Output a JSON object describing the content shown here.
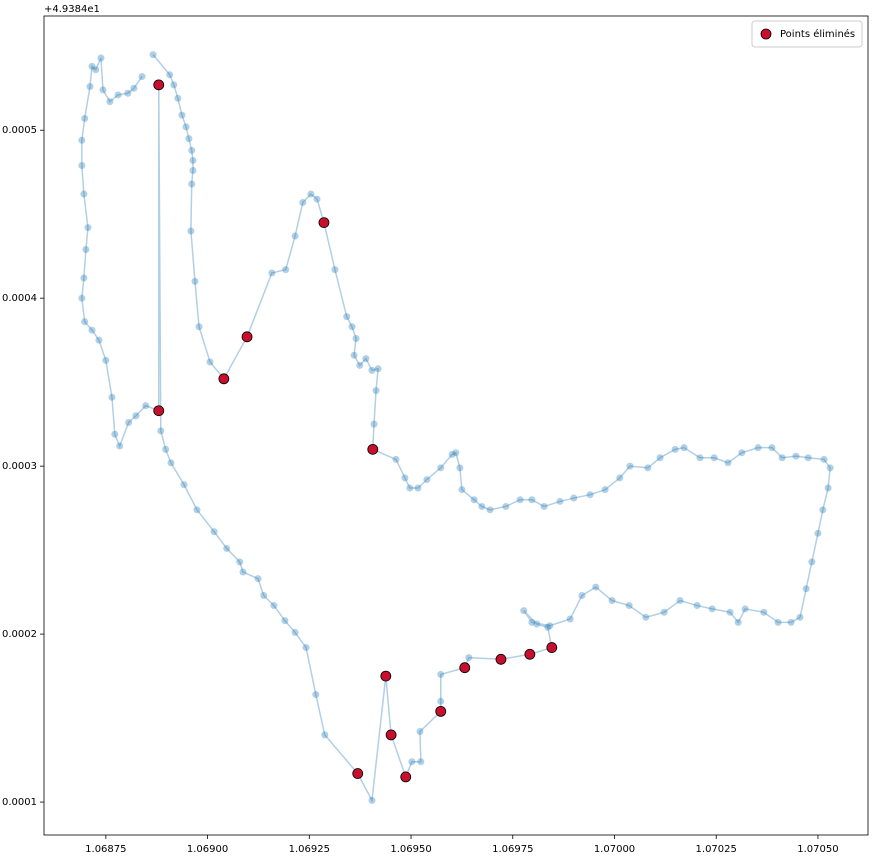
{
  "chart_data": {
    "type": "scatter",
    "y_offset_label": "+4.9384e1",
    "xlim": [
      1.068598,
      1.070623
    ],
    "ylim": [
      8.04e-05,
      0.000568
    ],
    "xticks": [
      1.06875,
      {
        "value": 1.069,
        "label": "1.06900"
      },
      1.06925,
      {
        "value": 1.0695,
        "label": "1.06950"
      },
      1.06975,
      {
        "value": 1.07,
        "label": "1.07000"
      },
      1.07025,
      {
        "value": 1.0705,
        "label": "1.07050"
      }
    ],
    "yticks": [
      0.0001,
      0.0002,
      0.0003,
      0.0004,
      0.0005
    ],
    "legend": "upper right",
    "series": [
      {
        "color": "#1f77b4",
        "line": true,
        "alpha": 0.35,
        "x": [
          1.068866,
          1.068907,
          1.068917,
          1.068927,
          1.068937,
          1.068947,
          1.068954,
          1.068961,
          1.068964,
          1.068964,
          1.068961,
          1.068959,
          1.068969,
          1.068979,
          1.069006,
          1.06904,
          1.069097,
          1.069158,
          1.069192,
          1.069215,
          1.069234,
          1.069254,
          1.069269,
          1.069286,
          1.069313,
          1.069342,
          1.069355,
          1.069365,
          1.06936,
          1.069374,
          1.069389,
          1.069404,
          1.069419,
          1.069414,
          1.069409,
          1.069406,
          1.069463,
          1.069485,
          1.069497,
          1.069517,
          1.069539,
          1.069573,
          1.069601,
          1.06961,
          1.06962,
          1.069625,
          1.069655,
          1.069674,
          1.069694,
          1.069733,
          1.069768,
          1.069797,
          1.069827,
          1.069866,
          1.0699,
          1.06994,
          1.069977,
          1.070013,
          1.070038,
          1.070082,
          1.070112,
          1.070149,
          1.070171,
          1.07021,
          1.070245,
          1.070279,
          1.070313,
          1.070353,
          1.070387,
          1.070412,
          1.070446,
          1.070476,
          1.070515,
          1.07053,
          1.070525,
          1.070512,
          1.0705,
          1.070485,
          1.070471,
          1.070456,
          1.070434,
          1.070402,
          1.070367,
          1.070321,
          1.070304,
          1.070284,
          1.07024,
          1.070203,
          1.070161,
          1.070122,
          1.070077,
          1.070036,
          1.069994,
          1.069954,
          1.06992,
          1.069891,
          1.069841,
          1.069797,
          1.069777,
          1.069809,
          1.069836,
          1.069846,
          1.069792,
          1.069721,
          1.069642,
          1.069632,
          1.069573,
          1.069573,
          1.069573,
          1.069522,
          1.069524,
          1.069502,
          1.069487,
          1.069451,
          1.069438,
          1.069404,
          1.069369,
          1.069288,
          1.069266,
          1.069242,
          1.069215,
          1.06919,
          1.069163,
          1.069138,
          1.069124,
          1.069087,
          1.069079,
          1.069047,
          1.069016,
          1.068974,
          1.068942,
          1.06891,
          1.068897,
          1.068885,
          1.06888,
          1.06888,
          1.068848,
          1.068824,
          1.068806,
          1.068784,
          1.068772,
          1.068765,
          1.06875,
          1.068733,
          1.068716,
          1.068698,
          1.068691,
          1.068696,
          1.068701,
          1.068706,
          1.068696,
          1.068691,
          1.068691,
          1.068698,
          1.068711,
          1.068716,
          1.068725,
          1.068738,
          1.068743,
          1.06876,
          1.06878,
          1.068804,
          1.068819,
          1.068839
        ],
        "y": [
          0.000545,
          0.000533,
          0.000527,
          0.000519,
          0.000509,
          0.000502,
          0.000495,
          0.000488,
          0.000482,
          0.000476,
          0.000468,
          0.00044,
          0.00041,
          0.000383,
          0.000362,
          0.000352,
          0.000377,
          0.000415,
          0.000417,
          0.000437,
          0.000457,
          0.000462,
          0.000459,
          0.000445,
          0.000417,
          0.000389,
          0.000383,
          0.000376,
          0.000366,
          0.00036,
          0.000364,
          0.000357,
          0.000358,
          0.000345,
          0.000325,
          0.00031,
          0.000304,
          0.000293,
          0.000287,
          0.000287,
          0.000292,
          0.000299,
          0.000307,
          0.000308,
          0.000299,
          0.000286,
          0.00028,
          0.000276,
          0.000274,
          0.000276,
          0.00028,
          0.00028,
          0.000276,
          0.000279,
          0.000281,
          0.000283,
          0.000286,
          0.000293,
          0.0003,
          0.000299,
          0.000305,
          0.00031,
          0.000311,
          0.000305,
          0.000305,
          0.000302,
          0.000308,
          0.000311,
          0.000311,
          0.000305,
          0.000306,
          0.000305,
          0.000304,
          0.000299,
          0.000287,
          0.000274,
          0.00026,
          0.000243,
          0.000227,
          0.00021,
          0.000207,
          0.000207,
          0.000213,
          0.000215,
          0.000207,
          0.000213,
          0.000215,
          0.000217,
          0.00022,
          0.000213,
          0.00021,
          0.000217,
          0.00022,
          0.000228,
          0.000223,
          0.000209,
          0.000205,
          0.000207,
          0.000214,
          0.000206,
          0.000204,
          0.000192,
          0.000188,
          0.000185,
          0.000186,
          0.00018,
          0.000176,
          0.00016,
          0.000154,
          0.000142,
          0.000124,
          0.000124,
          0.000115,
          0.00014,
          0.000175,
          0.000101,
          0.000117,
          0.00014,
          0.000164,
          0.000192,
          0.000201,
          0.000208,
          0.000217,
          0.000223,
          0.000233,
          0.000237,
          0.000243,
          0.000251,
          0.000261,
          0.000274,
          0.000289,
          0.000302,
          0.00031,
          0.000321,
          0.000527,
          0.000333,
          0.000336,
          0.00033,
          0.000326,
          0.000312,
          0.000319,
          0.000341,
          0.000363,
          0.000375,
          0.000381,
          0.000386,
          0.0004,
          0.000412,
          0.000429,
          0.000442,
          0.000462,
          0.000479,
          0.000494,
          0.000507,
          0.000526,
          0.000538,
          0.000536,
          0.000543,
          0.000524,
          0.000517,
          0.000521,
          0.000522,
          0.000525,
          0.000532
        ]
      },
      {
        "name": "Points éliminés",
        "color": "#c8102e",
        "edgecolor": "#000000",
        "x": [
          1.06904,
          1.069097,
          1.069286,
          1.069406,
          1.069846,
          1.069792,
          1.069721,
          1.069632,
          1.069573,
          1.069487,
          1.069451,
          1.069438,
          1.069369,
          1.06888,
          1.06888
        ],
        "y": [
          0.000352,
          0.000377,
          0.000445,
          0.00031,
          0.000192,
          0.000188,
          0.000185,
          0.00018,
          0.000154,
          0.000115,
          0.00014,
          0.000175,
          0.000117,
          0.000527,
          0.000333
        ]
      }
    ]
  }
}
